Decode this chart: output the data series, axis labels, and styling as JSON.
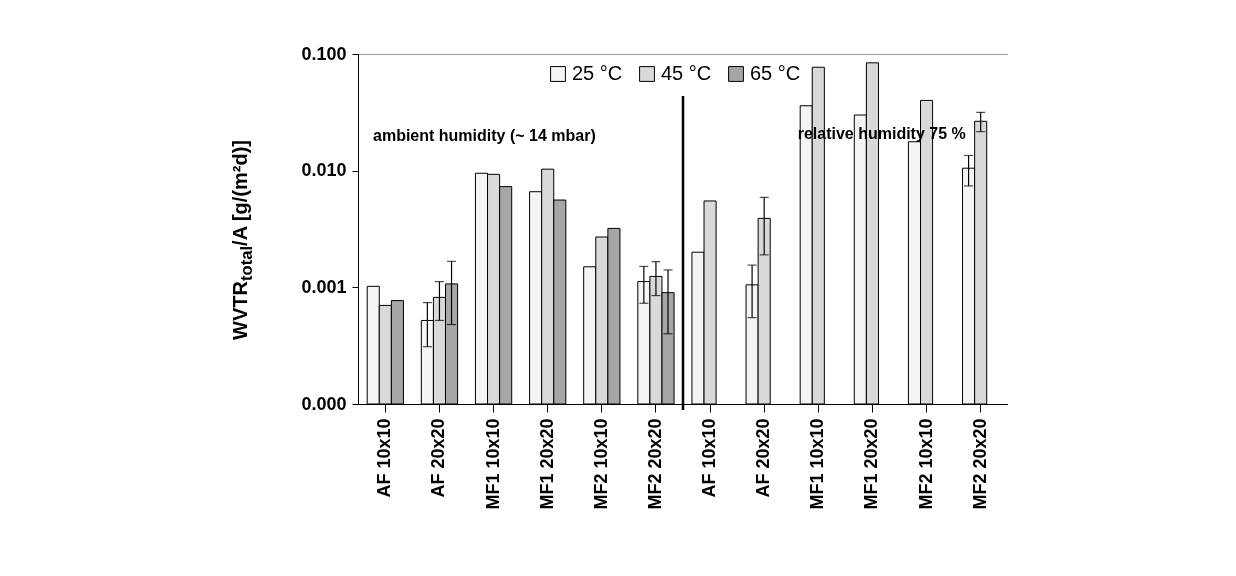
{
  "chart_data": {
    "type": "bar",
    "ylabel": "WVTR$_{total}$/A [g/(m²d)]",
    "categories": [
      "AF 10x10",
      "AF 20x20",
      "MF1 10x10",
      "MF1 20x20",
      "MF2 10x10",
      "MF2 20x20",
      "AF 10x10",
      "AF 20x20",
      "MF1 10x10",
      "MF1 20x20",
      "MF2 10x10",
      "MF2 20x20"
    ],
    "series": [
      {
        "name": "25 °C",
        "color": "#f4f4f4",
        "values": [
          0.00102,
          0.00052,
          0.0095,
          0.0066,
          0.0015,
          0.00112,
          0.002,
          0.00105,
          0.036,
          0.03,
          0.0177,
          0.0105
        ],
        "errors": [
          null,
          [
            0.00031,
            0.00074
          ],
          null,
          null,
          null,
          [
            0.00073,
            0.00151
          ],
          null,
          [
            0.00055,
            0.00155
          ],
          null,
          null,
          null,
          [
            0.0074,
            0.0135
          ]
        ]
      },
      {
        "name": "45 °C",
        "color": "#d9d9d9",
        "values": [
          0.0007,
          0.00082,
          0.0093,
          0.0103,
          0.0027,
          0.00124,
          0.0055,
          0.0039,
          0.077,
          0.084,
          0.04,
          0.0265
        ],
        "errors": [
          null,
          [
            0.00052,
            0.00112
          ],
          null,
          null,
          null,
          [
            0.00085,
            0.00166
          ],
          null,
          [
            0.0019,
            0.0059
          ],
          null,
          null,
          null,
          [
            0.0216,
            0.0316
          ]
        ]
      },
      {
        "name": "65 °C",
        "color": "#a6a6a6",
        "values": [
          0.00077,
          0.00107,
          0.0073,
          0.0056,
          0.0032,
          0.0009,
          null,
          null,
          null,
          null,
          null,
          null
        ],
        "errors": [
          null,
          [
            0.00048,
            0.00167
          ],
          null,
          null,
          null,
          [
            0.0004,
            0.00141
          ],
          null,
          null,
          null,
          null,
          null,
          null
        ]
      }
    ],
    "log": "y",
    "ylim": [
      0.0001,
      0.1
    ],
    "yticks": [
      {
        "value": 0.0001,
        "label": "0.000"
      },
      0.001,
      {
        "value": 0.01,
        "label": "0.010"
      },
      {
        "value": 0.1,
        "label": "0.100"
      }
    ],
    "annotations": [
      "ambient humidity (~ 14 mbar)",
      "relative humidity 75 %"
    ],
    "grid": false,
    "legend": "top"
  }
}
